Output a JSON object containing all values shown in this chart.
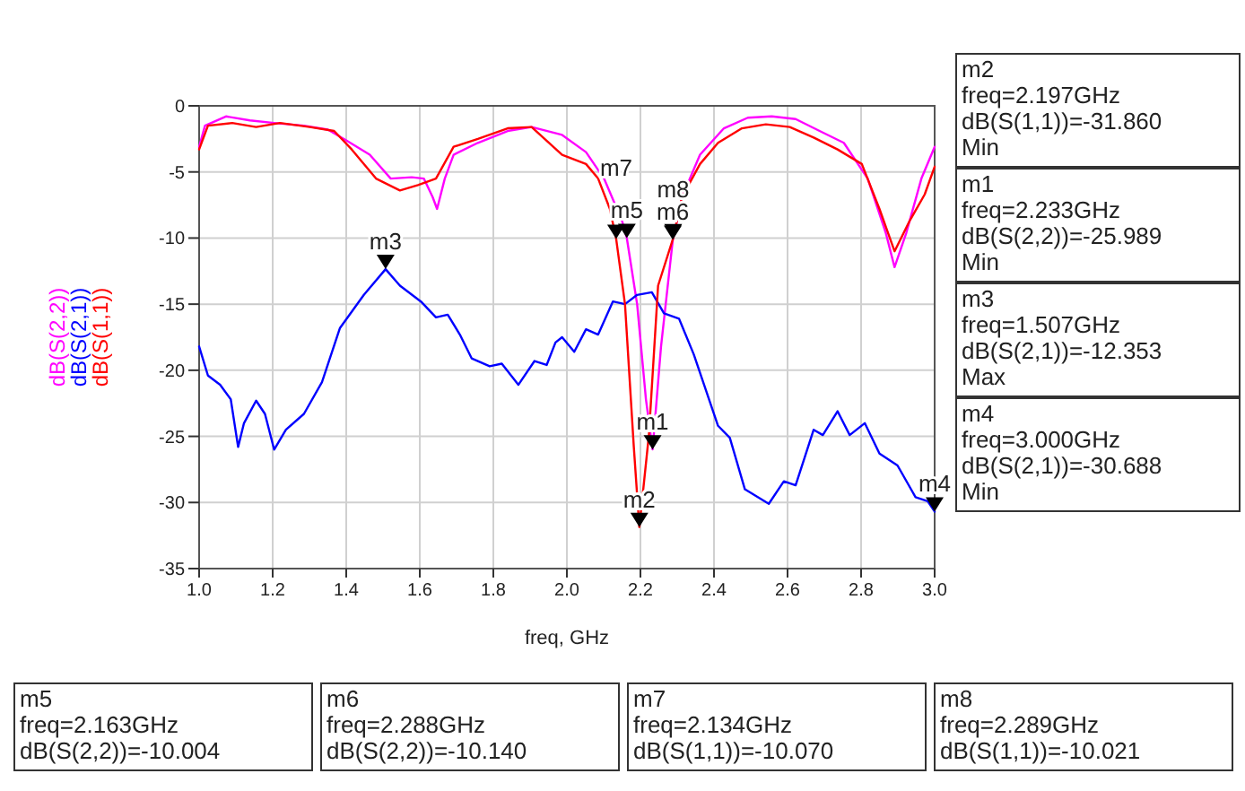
{
  "chart_data": {
    "type": "line",
    "xlabel": "freq, GHz",
    "legend": "left",
    "grid": true,
    "marker": "none",
    "line_style": "solid",
    "xlim": [
      1,
      3
    ],
    "ylim": [
      -35,
      0
    ],
    "xticks": [
      {
        "value": 1,
        "label": "1.0"
      },
      {
        "value": 1.2,
        "label": "1.2"
      },
      {
        "value": 1.4,
        "label": "1.4"
      },
      {
        "value": 1.6,
        "label": "1.6"
      },
      {
        "value": 1.8,
        "label": "1.8"
      },
      {
        "value": 2,
        "label": "2.0"
      },
      {
        "value": 2.2,
        "label": "2.2"
      },
      {
        "value": 2.4,
        "label": "2.4"
      },
      {
        "value": 2.6,
        "label": "2.6"
      },
      {
        "value": 2.8,
        "label": "2.8"
      },
      {
        "value": 3,
        "label": "3.0"
      }
    ],
    "yticks": [
      -35,
      -30,
      -25,
      -20,
      -15,
      -10,
      -5,
      0
    ],
    "series": [
      {
        "name": "dB(S(2,2))",
        "color": "#ff00ff",
        "x": [
          1.0,
          1.016,
          1.073,
          1.138,
          1.204,
          1.285,
          1.35,
          1.399,
          1.464,
          1.521,
          1.578,
          1.611,
          1.635,
          1.647,
          1.668,
          1.692,
          1.758,
          1.839,
          1.904,
          1.987,
          2.052,
          2.101,
          2.15,
          2.163,
          2.191,
          2.215,
          2.233,
          2.256,
          2.288,
          2.313,
          2.362,
          2.427,
          2.492,
          2.557,
          2.622,
          2.687,
          2.753,
          2.818,
          2.867,
          2.891,
          2.923,
          2.964,
          3.0
        ],
        "values": [
          -3.1,
          -1.5,
          -0.8,
          -1.1,
          -1.3,
          -1.5,
          -1.8,
          -2.6,
          -3.7,
          -5.5,
          -5.4,
          -5.5,
          -6.9,
          -7.8,
          -5.5,
          -3.7,
          -2.8,
          -1.9,
          -1.6,
          -2.2,
          -3.5,
          -5.5,
          -8.7,
          -10.004,
          -15.0,
          -22.2,
          -25.989,
          -18.2,
          -10.14,
          -6.9,
          -3.7,
          -1.7,
          -0.9,
          -0.8,
          -1.0,
          -1.9,
          -2.8,
          -5.5,
          -9.6,
          -12.2,
          -9.6,
          -5.5,
          -3.1
        ]
      },
      {
        "name": "dB(S(2,1))",
        "color": "#0000ff",
        "x": [
          1.0,
          1.024,
          1.057,
          1.086,
          1.106,
          1.122,
          1.155,
          1.179,
          1.204,
          1.236,
          1.285,
          1.334,
          1.383,
          1.448,
          1.507,
          1.546,
          1.603,
          1.644,
          1.676,
          1.709,
          1.741,
          1.79,
          1.823,
          1.868,
          1.912,
          1.945,
          1.969,
          1.987,
          2.02,
          2.052,
          2.085,
          2.125,
          2.158,
          2.191,
          2.231,
          2.264,
          2.305,
          2.345,
          2.411,
          2.443,
          2.484,
          2.549,
          2.59,
          2.622,
          2.671,
          2.696,
          2.736,
          2.769,
          2.81,
          2.85,
          2.899,
          2.948,
          2.981,
          3.0
        ],
        "values": [
          -18.2,
          -20.4,
          -21.1,
          -22.2,
          -25.8,
          -24.0,
          -22.3,
          -23.3,
          -26.0,
          -24.5,
          -23.3,
          -20.9,
          -16.8,
          -14.3,
          -12.353,
          -13.6,
          -14.8,
          -16.0,
          -15.8,
          -17.3,
          -19.1,
          -19.7,
          -19.5,
          -21.1,
          -19.3,
          -19.6,
          -17.9,
          -17.5,
          -18.6,
          -16.9,
          -17.3,
          -14.8,
          -15.0,
          -14.3,
          -14.1,
          -15.7,
          -16.1,
          -18.8,
          -24.2,
          -25.1,
          -29.0,
          -30.1,
          -28.4,
          -28.7,
          -24.5,
          -24.9,
          -23.1,
          -24.9,
          -24.0,
          -26.3,
          -27.2,
          -29.6,
          -29.9,
          -30.688
        ]
      },
      {
        "name": "dB(S(1,1))",
        "color": "#ff0000",
        "x": [
          1.0,
          1.024,
          1.09,
          1.155,
          1.22,
          1.301,
          1.367,
          1.415,
          1.481,
          1.546,
          1.595,
          1.644,
          1.692,
          1.758,
          1.839,
          1.904,
          1.987,
          2.052,
          2.085,
          2.117,
          2.134,
          2.158,
          2.182,
          2.197,
          2.223,
          2.248,
          2.289,
          2.313,
          2.362,
          2.411,
          2.476,
          2.541,
          2.606,
          2.671,
          2.736,
          2.802,
          2.85,
          2.891,
          2.932,
          2.973,
          3.0
        ],
        "values": [
          -3.3,
          -1.5,
          -1.3,
          -1.6,
          -1.3,
          -1.6,
          -1.9,
          -3.3,
          -5.5,
          -6.4,
          -6.0,
          -5.5,
          -3.1,
          -2.5,
          -1.7,
          -1.6,
          -3.7,
          -4.4,
          -5.5,
          -7.8,
          -10.07,
          -15.0,
          -25.8,
          -31.86,
          -24.9,
          -13.6,
          -10.021,
          -6.9,
          -4.4,
          -2.8,
          -1.7,
          -1.4,
          -1.6,
          -2.4,
          -3.3,
          -4.4,
          -7.8,
          -11.0,
          -8.7,
          -6.7,
          -4.6
        ]
      }
    ],
    "annotations": [
      {
        "text": "m1",
        "x": 2.233,
        "y": -25.989
      },
      {
        "text": "m2",
        "x": 2.197,
        "y": -31.86
      },
      {
        "text": "m3",
        "x": 1.507,
        "y": -12.353
      },
      {
        "text": "m4",
        "x": 3.0,
        "y": -30.688
      },
      {
        "text": "m5",
        "x": 2.163,
        "y": -10.004
      },
      {
        "text": "m6",
        "x": 2.288,
        "y": -10.14
      },
      {
        "text": "m7",
        "x": 2.134,
        "y": -10.07
      },
      {
        "text": "m8",
        "x": 2.289,
        "y": -10.021
      },
      "m2\nfreq=2.197GHz\ndB(S(1,1))=-31.860\nMin",
      "m1\nfreq=2.233GHz\ndB(S(2,2))=-25.989\nMin",
      "m3\nfreq=1.507GHz\ndB(S(2,1))=-12.353\nMax",
      "m4\nfreq=3.000GHz\ndB(S(2,1))=-30.688\nMin",
      "m5\nfreq=2.163GHz\ndB(S(2,2))=-10.004",
      "m6\nfreq=2.288GHz\ndB(S(2,2))=-10.140",
      "m7\nfreq=2.134GHz\ndB(S(1,1))=-10.070",
      "m8\nfreq=2.289GHz\ndB(S(1,1))=-10.021"
    ]
  }
}
